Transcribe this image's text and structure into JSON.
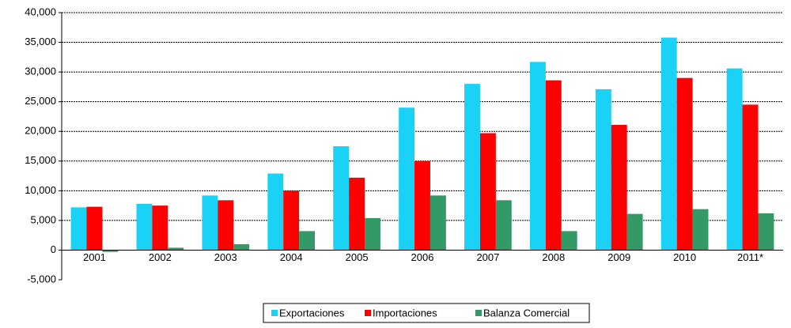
{
  "chart_data": {
    "type": "bar",
    "categories": [
      "2001",
      "2002",
      "2003",
      "2004",
      "2005",
      "2006",
      "2007",
      "2008",
      "2009",
      "2010",
      "2011*"
    ],
    "series": [
      {
        "name": "Exportaciones",
        "color": "#19d2f5",
        "values": [
          7200,
          7800,
          9200,
          12900,
          17500,
          24000,
          28000,
          31700,
          27100,
          35800,
          30600
        ]
      },
      {
        "name": "Importaciones",
        "color": "#ff0000",
        "values": [
          7300,
          7500,
          8400,
          10000,
          12200,
          15000,
          19700,
          28600,
          21100,
          29000,
          24500
        ]
      },
      {
        "name": "Balanza Comercial",
        "color": "#339966",
        "values": [
          -300,
          400,
          1000,
          3200,
          5400,
          9200,
          8400,
          3200,
          6100,
          6900,
          6200
        ]
      }
    ],
    "ylim": [
      -5000,
      40000
    ],
    "yticks": [
      {
        "value": -5000,
        "label": "-5,000"
      },
      0,
      {
        "value": 5000,
        "label": "5,000"
      },
      {
        "value": 10000,
        "label": "10,000"
      },
      {
        "value": 15000,
        "label": "15,000"
      },
      {
        "value": 20000,
        "label": "20,000"
      },
      {
        "value": 25000,
        "label": "25,000"
      },
      {
        "value": 30000,
        "label": "30,000"
      },
      {
        "value": 35000,
        "label": "35,000"
      },
      {
        "value": 40000,
        "label": "40,000"
      }
    ],
    "grid": true,
    "legend": "bottom"
  }
}
